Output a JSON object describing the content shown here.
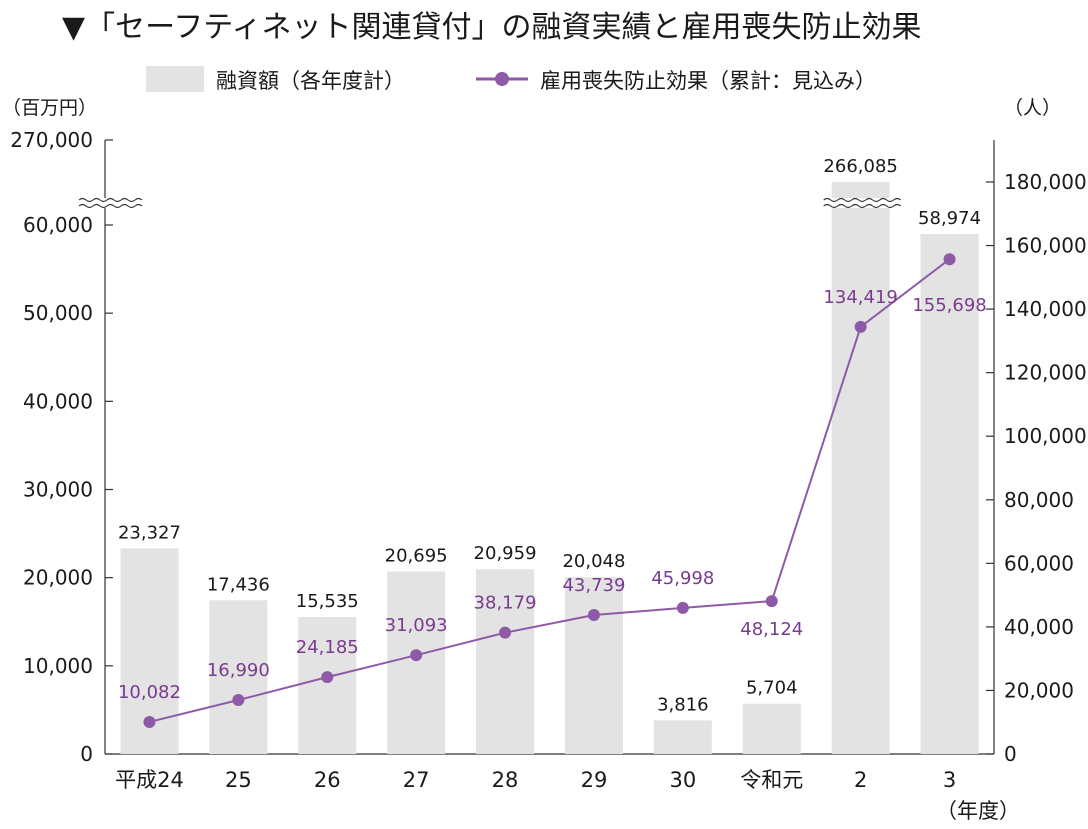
{
  "chart_data": {
    "type": "bar",
    "title": "▼「セーフティネット関連貸付」の融資実績と雇用喪失防止効果",
    "categories": [
      "平成24",
      "25",
      "26",
      "27",
      "28",
      "29",
      "30",
      "令和元",
      "2",
      "3"
    ],
    "x_unit": "（年度）",
    "series": [
      {
        "name": "融資額（各年度計）",
        "type": "bar",
        "axis": "left",
        "values": [
          23327,
          17436,
          15535,
          20695,
          20959,
          20048,
          3816,
          5704,
          266085,
          58974
        ],
        "labels": [
          "23,327",
          "17,436",
          "15,535",
          "20,695",
          "20,959",
          "20,048",
          "3,816",
          "5,704",
          "266,085",
          "58,974"
        ]
      },
      {
        "name": "雇用喪失防止効果（累計：見込み）",
        "type": "line",
        "axis": "right",
        "values": [
          10082,
          16990,
          24185,
          31093,
          38179,
          43739,
          45998,
          48124,
          134419,
          155698
        ],
        "labels": [
          "10,082",
          "16,990",
          "24,185",
          "31,093",
          "38,179",
          "43,739",
          "45,998",
          "48,124",
          "134,419",
          "155,698"
        ]
      }
    ],
    "y_left": {
      "unit": "（百万円）",
      "ticks": [
        0,
        10000,
        20000,
        30000,
        40000,
        50000,
        60000,
        270000
      ],
      "tick_labels": [
        "0",
        "10,000",
        "20,000",
        "30,000",
        "40,000",
        "50,000",
        "60,000",
        "270,000"
      ],
      "axis_break": [
        60000,
        270000
      ]
    },
    "y_right": {
      "unit": "（人）",
      "ticks": [
        0,
        20000,
        40000,
        60000,
        80000,
        100000,
        120000,
        140000,
        160000,
        180000
      ],
      "tick_labels": [
        "0",
        "20,000",
        "40,000",
        "60,000",
        "80,000",
        "100,000",
        "120,000",
        "140,000",
        "160,000",
        "180,000"
      ],
      "ylim": [
        0,
        192000
      ]
    },
    "colors": {
      "bar": "#e3e3e3",
      "line": "#8e5aa8",
      "line_label": "#7a3b8f",
      "axis": "#333333"
    },
    "legend_placement": "top",
    "grid": false
  }
}
